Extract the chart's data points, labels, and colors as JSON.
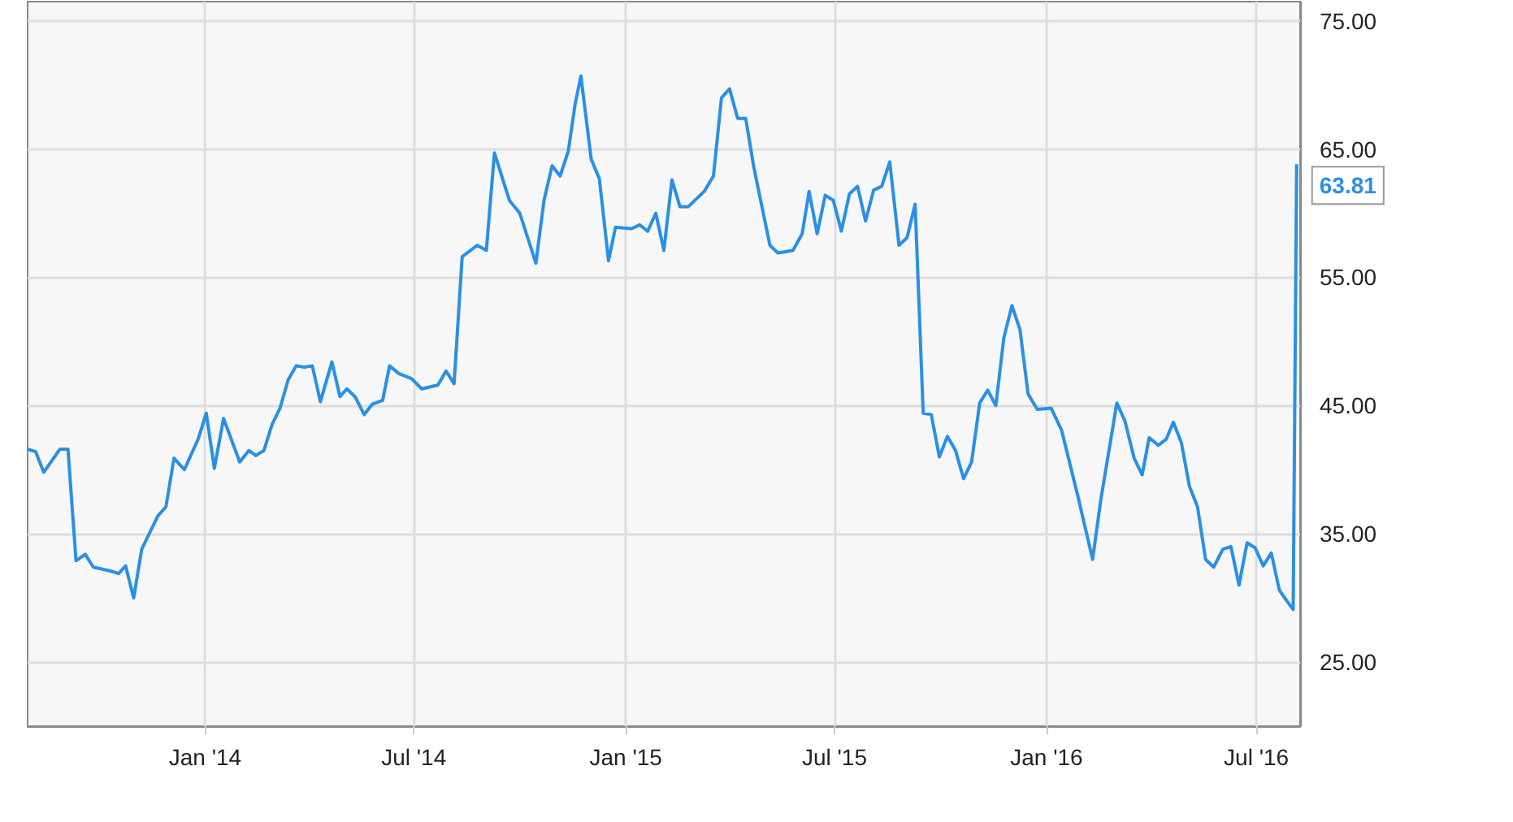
{
  "chart_data": {
    "type": "line",
    "color": "#2a8fe6",
    "x": [
      "2013-07-31",
      "2013-08-07",
      "2013-08-14",
      "2013-08-28",
      "2013-09-04",
      "2013-09-11",
      "2013-09-19",
      "2013-09-26",
      "2013-10-11",
      "2013-10-18",
      "2013-10-24",
      "2013-10-31",
      "2013-11-07",
      "2013-11-21",
      "2013-11-28",
      "2013-12-05",
      "2013-12-14",
      "2013-12-26",
      "2014-01-02",
      "2014-01-09",
      "2014-01-17",
      "2014-01-31",
      "2014-02-08",
      "2014-02-14",
      "2014-02-21",
      "2014-02-28",
      "2014-03-07",
      "2014-03-14",
      "2014-03-21",
      "2014-03-28",
      "2014-04-04",
      "2014-04-11",
      "2014-04-21",
      "2014-04-28",
      "2014-05-04",
      "2014-05-11",
      "2014-05-19",
      "2014-05-26",
      "2014-06-04",
      "2014-06-10",
      "2014-06-18",
      "2014-06-29",
      "2014-07-08",
      "2014-07-22",
      "2014-07-29",
      "2014-08-05",
      "2014-08-12",
      "2014-08-25",
      "2014-09-02",
      "2014-09-09",
      "2014-09-22",
      "2014-10-01",
      "2014-10-15",
      "2014-10-22",
      "2014-10-29",
      "2014-11-05",
      "2014-11-12",
      "2014-11-18",
      "2014-11-23",
      "2014-12-02",
      "2014-12-09",
      "2014-12-17",
      "2014-12-23",
      "2015-01-06",
      "2015-01-13",
      "2015-01-20",
      "2015-01-27",
      "2015-02-03",
      "2015-02-10",
      "2015-02-17",
      "2015-02-24",
      "2015-03-10",
      "2015-03-18",
      "2015-03-25",
      "2015-04-01",
      "2015-04-08",
      "2015-04-15",
      "2015-04-22",
      "2015-05-06",
      "2015-05-13",
      "2015-05-26",
      "2015-06-03",
      "2015-06-09",
      "2015-06-16",
      "2015-06-23",
      "2015-06-30",
      "2015-07-07",
      "2015-07-14",
      "2015-07-21",
      "2015-07-28",
      "2015-08-04",
      "2015-08-11",
      "2015-08-18",
      "2015-08-26",
      "2015-09-02",
      "2015-09-09",
      "2015-09-16",
      "2015-09-23",
      "2015-09-30",
      "2015-10-07",
      "2015-10-14",
      "2015-10-21",
      "2015-10-28",
      "2015-11-04",
      "2015-11-11",
      "2015-11-18",
      "2015-11-25",
      "2015-12-02",
      "2015-12-09",
      "2015-12-16",
      "2015-12-24",
      "2016-01-05",
      "2016-01-14",
      "2016-01-28",
      "2016-02-10",
      "2016-02-17",
      "2016-03-02",
      "2016-03-09",
      "2016-03-17",
      "2016-03-24",
      "2016-03-30",
      "2016-04-07",
      "2016-04-14",
      "2016-04-20",
      "2016-04-27",
      "2016-05-04",
      "2016-05-11",
      "2016-05-18",
      "2016-05-25",
      "2016-06-02",
      "2016-06-09",
      "2016-06-16",
      "2016-06-23",
      "2016-06-30",
      "2016-07-07",
      "2016-07-14",
      "2016-07-21",
      "2016-07-28",
      "2016-08-02",
      "2016-08-05"
    ],
    "values": [
      41.6,
      41.4,
      39.8,
      41.6,
      41.6,
      32.9,
      33.4,
      32.4,
      32.1,
      31.9,
      32.5,
      30.0,
      33.8,
      36.4,
      37.1,
      40.9,
      40.0,
      42.4,
      44.4,
      40.1,
      44.0,
      40.6,
      41.5,
      41.1,
      41.5,
      43.5,
      44.8,
      47.0,
      48.1,
      48.0,
      48.1,
      45.3,
      48.4,
      45.7,
      46.3,
      45.7,
      44.3,
      45.1,
      45.4,
      48.1,
      47.5,
      47.1,
      46.3,
      46.6,
      47.7,
      46.7,
      56.6,
      57.5,
      57.1,
      64.7,
      61.0,
      60.0,
      56.1,
      61.0,
      63.7,
      62.9,
      64.8,
      68.5,
      70.7,
      64.2,
      62.7,
      56.3,
      58.9,
      58.8,
      59.1,
      58.6,
      60.0,
      57.1,
      62.6,
      60.5,
      60.5,
      61.7,
      62.9,
      69.0,
      69.7,
      67.4,
      67.4,
      63.6,
      57.5,
      56.9,
      57.1,
      58.4,
      61.7,
      58.4,
      61.4,
      61.0,
      58.6,
      61.5,
      62.1,
      59.4,
      61.8,
      62.1,
      64.0,
      57.5,
      58.1,
      60.7,
      44.4,
      44.3,
      41.0,
      42.6,
      41.5,
      39.3,
      40.6,
      45.2,
      46.2,
      45.0,
      50.3,
      52.8,
      50.9,
      45.9,
      44.7,
      44.8,
      43.1,
      38.0,
      33.0,
      37.6,
      45.2,
      43.8,
      40.9,
      39.6,
      42.5,
      41.9,
      42.4,
      43.7,
      42.1,
      38.7,
      37.1,
      33.0,
      32.4,
      33.8,
      34.0,
      31.0,
      34.3,
      33.9,
      32.5,
      33.5,
      30.6,
      29.7,
      29.1,
      63.81
    ],
    "value_labels": [
      null,
      null,
      null,
      null,
      null,
      null,
      null,
      null,
      null,
      null,
      null,
      null,
      null,
      null,
      null,
      null,
      null,
      null,
      null,
      null,
      null,
      null,
      null,
      null,
      null,
      null,
      null,
      null,
      null,
      null,
      null,
      null,
      null,
      null,
      null,
      null,
      null,
      null,
      null,
      null,
      null,
      null,
      null,
      null,
      null,
      null,
      null,
      null,
      null,
      null,
      null,
      null,
      null,
      null,
      null,
      null,
      null,
      null,
      null,
      null,
      null,
      null,
      null,
      null,
      null,
      null,
      null,
      null,
      null,
      null,
      null,
      null,
      null,
      null,
      null,
      null,
      null,
      null,
      null,
      null,
      null,
      null,
      null,
      null,
      null,
      null,
      null,
      null,
      null,
      null,
      null,
      null,
      null,
      null,
      null,
      null,
      null,
      null,
      null,
      null,
      null,
      null,
      null,
      null,
      null,
      null,
      null,
      null,
      null,
      null,
      null,
      null,
      null,
      null,
      null,
      null,
      null,
      null,
      null,
      null,
      null,
      null,
      null,
      null,
      null,
      null,
      null,
      null,
      null,
      null,
      null,
      null,
      null,
      null,
      null,
      null,
      null,
      null,
      null,
      "63.81"
    ],
    "xlim": [
      "2013-07-31",
      "2016-08-08"
    ],
    "xticks": [
      {
        "value": "2014-01-01",
        "label": "Jan '14"
      },
      {
        "value": "2014-07-01",
        "label": "Jul '14"
      },
      {
        "value": "2015-01-01",
        "label": "Jan '15"
      },
      {
        "value": "2015-07-01",
        "label": "Jul '15"
      },
      {
        "value": "2016-01-01",
        "label": "Jan '16"
      },
      {
        "value": "2016-07-01",
        "label": "Jul '16"
      }
    ],
    "ylim": [
      20,
      76.5
    ],
    "yticks": [
      {
        "value": 25,
        "label": "25.00"
      },
      {
        "value": 35,
        "label": "35.00"
      },
      {
        "value": 45,
        "label": "45.00"
      },
      {
        "value": 55,
        "label": "55.00"
      },
      {
        "value": 65,
        "label": "65.00"
      },
      {
        "value": 75,
        "label": "75.00"
      }
    ],
    "grid": true,
    "marker": "none",
    "line_style": "solid"
  }
}
